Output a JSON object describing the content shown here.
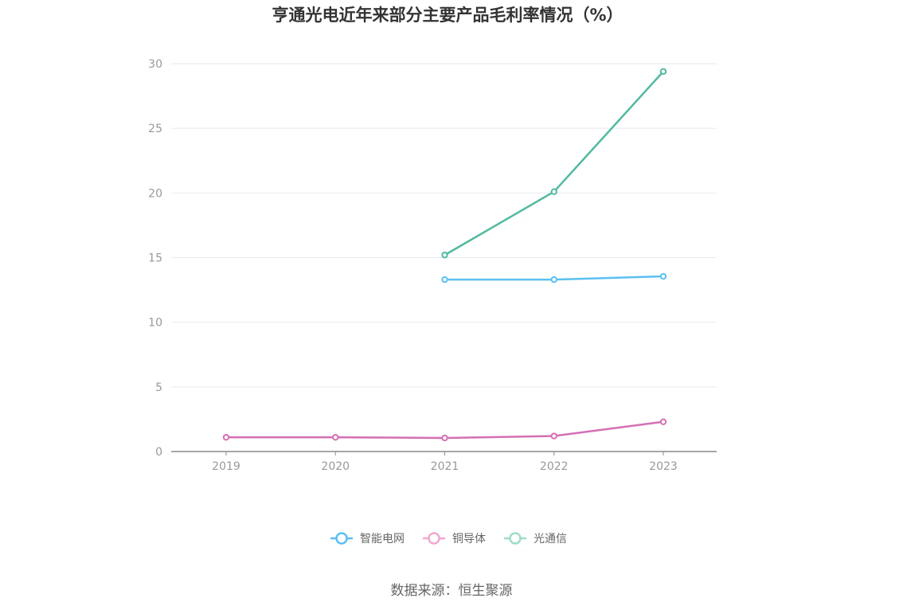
{
  "chart_data": {
    "type": "line",
    "title": "亨通光电近年来部分主要产品毛利率情况（%）",
    "categories": [
      "2019",
      "2020",
      "2021",
      "2022",
      "2023"
    ],
    "ylim": [
      0,
      30
    ],
    "yticks": [
      0,
      5,
      10,
      15,
      20,
      25,
      30
    ],
    "grid": true,
    "legend_position": "bottom-center",
    "series": [
      {
        "name": "智能电网",
        "color": "#5bc0f1",
        "values": [
          null,
          null,
          13.3,
          13.3,
          13.55
        ]
      },
      {
        "name": "铜导体",
        "color": "#d56fb4",
        "values": [
          1.1,
          1.1,
          1.05,
          1.2,
          2.3
        ]
      },
      {
        "name": "光通信",
        "color": "#52b9a0",
        "values": [
          null,
          null,
          15.2,
          20.1,
          29.4
        ]
      }
    ],
    "legend_colors": [
      "#5bc0f1",
      "#f2a7cf",
      "#9fdcc8"
    ],
    "source": "数据来源：恒生聚源"
  }
}
